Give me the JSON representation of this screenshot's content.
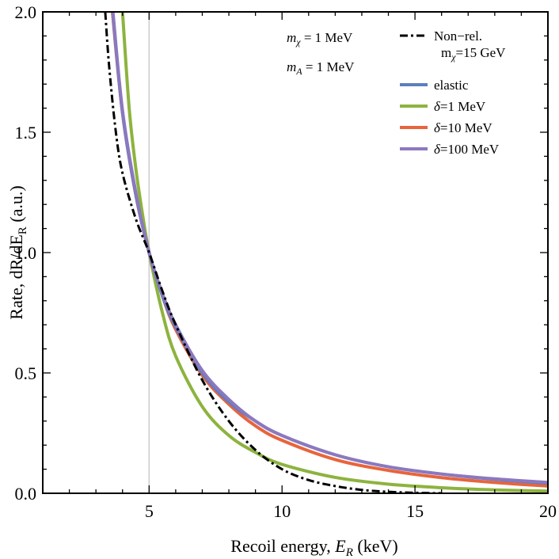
{
  "chart_data": {
    "type": "line",
    "xlabel": "Recoil energy, E_R (keV)",
    "ylabel": "Rate, dR/dE_R (a.u.)",
    "xlim": [
      1,
      20
    ],
    "ylim": [
      0,
      2
    ],
    "xticks": [
      5,
      10,
      15,
      20
    ],
    "yticks": [
      0.0,
      0.5,
      1.0,
      1.5,
      2.0
    ],
    "xtick_labels": [
      "5",
      "10",
      "15",
      "20"
    ],
    "ytick_labels": [
      "0.0",
      "0.5",
      "1.0",
      "1.5",
      "2.0"
    ],
    "reference_line_x": 5,
    "annotations": [
      "m_χ = 1 MeV",
      "m_A = 1 MeV"
    ],
    "grid": false,
    "legend_position": "top-right",
    "series": [
      {
        "name": "elastic",
        "color": "#5b7fbf",
        "style": "solid",
        "x": [
          3.63,
          4,
          4.5,
          5,
          5.5,
          6,
          7,
          8,
          9,
          10,
          12,
          14,
          16,
          18,
          20
        ],
        "y": [
          2.0,
          1.58,
          1.24,
          1.0,
          0.82,
          0.69,
          0.5,
          0.38,
          0.3,
          0.24,
          0.16,
          0.11,
          0.08,
          0.058,
          0.042
        ]
      },
      {
        "name": "δ=1 MeV",
        "color": "#8db33f",
        "style": "solid",
        "x": [
          4.0,
          4.25,
          4.5,
          4.75,
          5,
          5.5,
          6,
          7,
          8,
          9,
          10,
          12,
          14,
          16,
          18,
          20
        ],
        "y": [
          2.0,
          1.6,
          1.35,
          1.16,
          1.0,
          0.75,
          0.57,
          0.36,
          0.24,
          0.17,
          0.12,
          0.066,
          0.038,
          0.023,
          0.014,
          0.009
        ]
      },
      {
        "name": "δ=10 MeV",
        "color": "#e8643c",
        "style": "solid",
        "x": [
          3.62,
          4,
          4.5,
          5,
          5.5,
          6,
          7,
          8,
          9,
          10,
          12,
          14,
          16,
          18,
          20
        ],
        "y": [
          2.0,
          1.58,
          1.24,
          1.0,
          0.82,
          0.68,
          0.49,
          0.37,
          0.28,
          0.22,
          0.14,
          0.095,
          0.065,
          0.045,
          0.03
        ]
      },
      {
        "name": "δ=100 MeV",
        "color": "#8c78bf",
        "style": "solid",
        "x": [
          3.64,
          4,
          4.5,
          5,
          5.5,
          6,
          7,
          8,
          9,
          10,
          12,
          14,
          16,
          18,
          20
        ],
        "y": [
          2.0,
          1.59,
          1.25,
          1.0,
          0.83,
          0.7,
          0.51,
          0.39,
          0.3,
          0.24,
          0.16,
          0.11,
          0.08,
          0.06,
          0.045
        ]
      },
      {
        "name": "Non−rel.",
        "name_line2": "m_χ=15 GeV",
        "color": "#000000",
        "style": "dashdot",
        "x": [
          3.35,
          3.5,
          3.75,
          4,
          4.5,
          5,
          5.5,
          6,
          7,
          8,
          9,
          10,
          11,
          12,
          13,
          14,
          15,
          16
        ],
        "y": [
          2.0,
          1.77,
          1.5,
          1.33,
          1.14,
          1.0,
          0.84,
          0.7,
          0.47,
          0.3,
          0.18,
          0.1,
          0.055,
          0.03,
          0.014,
          0.006,
          0.002,
          0.0
        ]
      }
    ]
  }
}
